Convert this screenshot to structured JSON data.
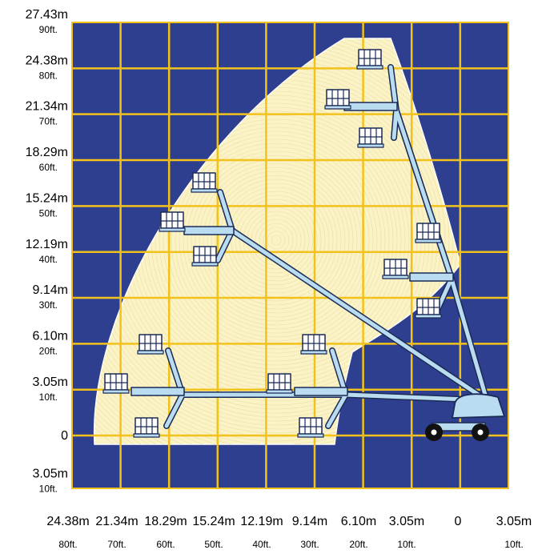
{
  "chart_data": {
    "type": "diagram",
    "y_labels": [
      {
        "m": "27.43m",
        "ft": "90ft."
      },
      {
        "m": "24.38m",
        "ft": "80ft."
      },
      {
        "m": "21.34m",
        "ft": "70ft."
      },
      {
        "m": "18.29m",
        "ft": "60ft."
      },
      {
        "m": "15.24m",
        "ft": "50ft."
      },
      {
        "m": "12.19m",
        "ft": "40ft."
      },
      {
        "m": "9.14m",
        "ft": "30ft."
      },
      {
        "m": "6.10m",
        "ft": "20ft."
      },
      {
        "m": "3.05m",
        "ft": "10ft."
      },
      {
        "m": "0",
        "ft": ""
      },
      {
        "m": "3.05m",
        "ft": "10ft."
      }
    ],
    "x_labels": [
      {
        "m": "24.38m",
        "ft": "80ft."
      },
      {
        "m": "21.34m",
        "ft": "70ft."
      },
      {
        "m": "18.29m",
        "ft": "60ft."
      },
      {
        "m": "15.24m",
        "ft": "50ft."
      },
      {
        "m": "12.19m",
        "ft": "40ft."
      },
      {
        "m": "9.14m",
        "ft": "30ft."
      },
      {
        "m": "6.10m",
        "ft": "20ft."
      },
      {
        "m": "3.05m",
        "ft": "10ft."
      },
      {
        "m": "0",
        "ft": ""
      },
      {
        "m": "3.05m",
        "ft": "10ft."
      }
    ],
    "colors": {
      "background": "#2f3f8f",
      "grid": "#f2c21b",
      "envelope": "#fbf3c6",
      "boom": "#b9dcf0",
      "outline": "#1b2a56"
    }
  }
}
